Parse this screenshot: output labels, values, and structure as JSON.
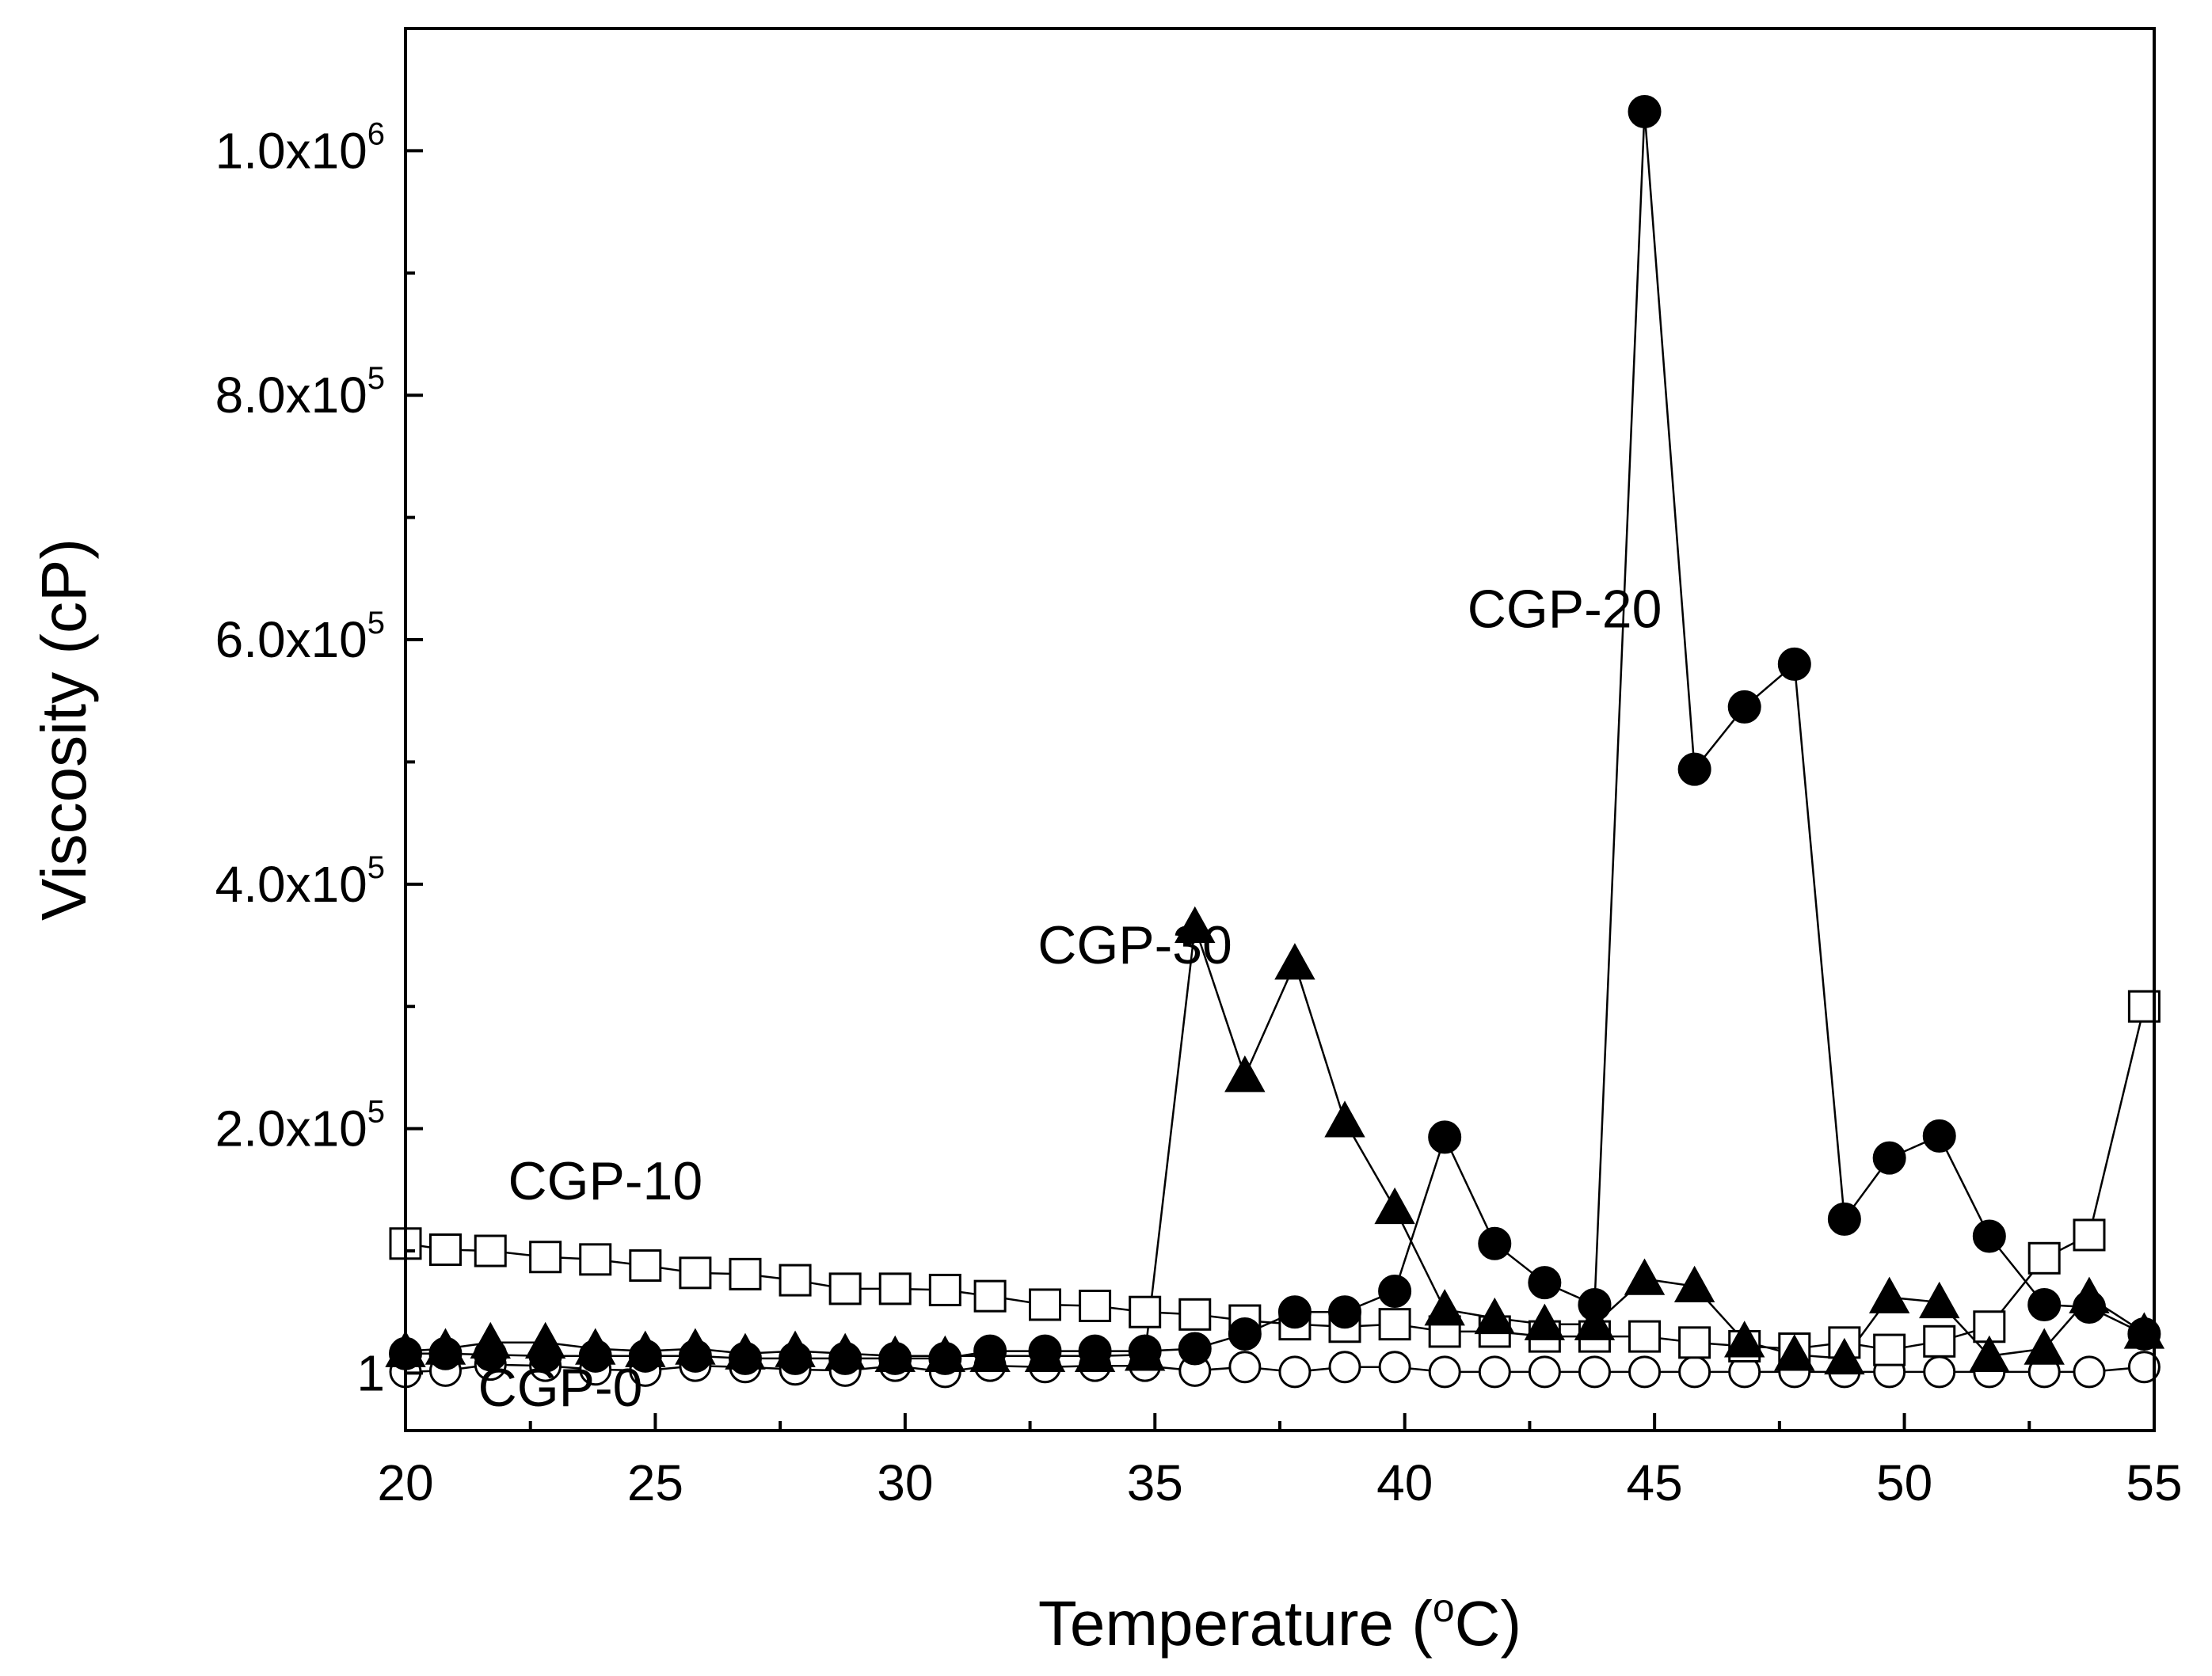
{
  "chart_data": {
    "type": "line",
    "title": "",
    "xlabel_prefix": "Temperature (",
    "xlabel_degree": "o",
    "xlabel_suffix": "C)",
    "ylabel": "Viscosity (cP)",
    "xlim": [
      20,
      55
    ],
    "ylim": [
      -47000,
      1100000
    ],
    "x_ticks": [
      20,
      25,
      30,
      35,
      40,
      45,
      50,
      55
    ],
    "x_tick_labels": [
      "20",
      "25",
      "30",
      "35",
      "40",
      "45",
      "50",
      "55"
    ],
    "y_ticks": [
      1,
      200000,
      400000,
      600000,
      800000,
      1000000
    ],
    "y_tick_labels": [
      {
        "text": "1",
        "mantissa": "",
        "exp": ""
      },
      {
        "text": "",
        "mantissa": "2.0x10",
        "exp": "5"
      },
      {
        "text": "",
        "mantissa": "4.0x10",
        "exp": "5"
      },
      {
        "text": "",
        "mantissa": "6.0x10",
        "exp": "5"
      },
      {
        "text": "",
        "mantissa": "8.0x10",
        "exp": "5"
      },
      {
        "text": "",
        "mantissa": "1.0x10",
        "exp": "6"
      }
    ],
    "series": [
      {
        "name": "CGP-0",
        "marker": "circle-open",
        "x": [
          20.0,
          20.8,
          21.7,
          22.8,
          23.8,
          24.8,
          25.8,
          26.8,
          27.8,
          28.8,
          29.8,
          30.8,
          31.7,
          32.8,
          33.8,
          34.8,
          35.8,
          36.8,
          37.8,
          38.8,
          39.8,
          40.8,
          41.8,
          42.8,
          43.8,
          44.8,
          45.8,
          46.8,
          47.8,
          48.8,
          49.7,
          50.7,
          51.7,
          52.8,
          53.7,
          54.8
        ],
        "values": [
          1000,
          2000,
          7000,
          6000,
          3000,
          2000,
          6000,
          5000,
          3000,
          2000,
          6000,
          1000,
          6000,
          5000,
          6000,
          6000,
          2000,
          5000,
          1000,
          5000,
          5000,
          1000,
          1000,
          1000,
          1000,
          1000,
          1000,
          1000,
          1000,
          1000,
          1000,
          1000,
          1000,
          1000,
          1000,
          5000
        ]
      },
      {
        "name": "CGP-10",
        "marker": "square-open",
        "x": [
          20.0,
          20.8,
          21.7,
          22.8,
          23.8,
          24.8,
          25.8,
          26.8,
          27.8,
          28.8,
          29.8,
          30.8,
          31.7,
          32.8,
          33.8,
          34.8,
          35.8,
          36.8,
          37.8,
          38.8,
          39.8,
          40.8,
          41.8,
          42.8,
          43.8,
          44.8,
          45.8,
          46.8,
          47.8,
          48.8,
          49.7,
          50.7,
          51.7,
          52.8,
          53.7,
          54.8
        ],
        "values": [
          106000,
          101000,
          100000,
          95000,
          93000,
          88000,
          82000,
          81000,
          76000,
          69000,
          69000,
          68000,
          63000,
          56000,
          55000,
          50000,
          48000,
          43000,
          40000,
          38000,
          40000,
          34000,
          34000,
          30000,
          30000,
          30000,
          25000,
          22000,
          20000,
          25000,
          19000,
          26000,
          38000,
          94000,
          113000,
          300000
        ]
      },
      {
        "name": "CGP-20",
        "marker": "circle-filled",
        "x": [
          20.0,
          20.8,
          21.7,
          22.8,
          23.8,
          24.8,
          25.8,
          26.8,
          27.8,
          28.8,
          29.8,
          30.8,
          31.7,
          32.8,
          33.8,
          34.8,
          35.8,
          36.8,
          37.8,
          38.8,
          39.8,
          40.8,
          41.8,
          42.8,
          43.8,
          44.8,
          45.8,
          46.8,
          47.8,
          48.8,
          49.7,
          50.7,
          51.7,
          52.8,
          53.7,
          54.8
        ],
        "values": [
          16000,
          16000,
          15000,
          14000,
          14000,
          14000,
          14000,
          12000,
          12000,
          12000,
          12000,
          12000,
          18000,
          18000,
          18000,
          18000,
          20000,
          32000,
          50000,
          50000,
          67000,
          193000,
          106000,
          74000,
          56000,
          1032000,
          494000,
          545000,
          580000,
          126000,
          176000,
          194000,
          112000,
          56000,
          54000,
          32000
        ]
      },
      {
        "name": "CGP-30",
        "marker": "triangle-filled",
        "x": [
          20.0,
          20.8,
          21.7,
          22.8,
          23.8,
          24.8,
          25.8,
          26.8,
          27.8,
          28.8,
          29.8,
          30.8,
          31.7,
          32.8,
          33.8,
          34.8,
          35.8,
          36.8,
          37.8,
          38.8,
          39.8,
          40.8,
          41.8,
          42.8,
          43.8,
          44.8,
          45.8,
          46.8,
          47.8,
          48.8,
          49.7,
          50.7,
          51.7,
          52.8,
          53.7,
          54.8
        ],
        "values": [
          18000,
          20000,
          25000,
          25000,
          20000,
          18000,
          20000,
          16000,
          18000,
          16000,
          14000,
          14000,
          14000,
          14000,
          14000,
          15000,
          365000,
          243000,
          335000,
          206000,
          135000,
          52000,
          45000,
          40000,
          40000,
          77000,
          71000,
          26000,
          15000,
          12000,
          62000,
          58000,
          14000,
          20000,
          62000,
          33000
        ]
      }
    ],
    "annotations": [
      {
        "text": "CGP-20",
        "x": 43.2,
        "y": 610000
      },
      {
        "text": "CGP-30",
        "x": 34.6,
        "y": 335000
      },
      {
        "text": "CGP-10",
        "x": 24.0,
        "y": 142000
      },
      {
        "text": "CGP-0",
        "x": 23.1,
        "y": -27000
      }
    ]
  }
}
